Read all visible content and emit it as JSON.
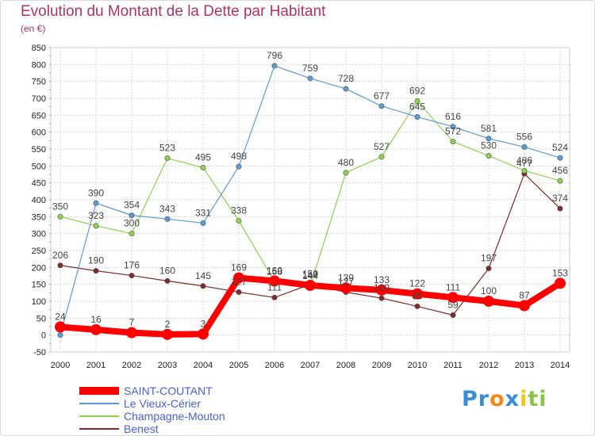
{
  "chart_data": {
    "type": "line",
    "title": "Evolution du Montant de la Dette par Habitant",
    "subtitle": "(en €)",
    "x": [
      "2000",
      "2001",
      "2002",
      "2003",
      "2004",
      "2005",
      "2006",
      "2007",
      "2008",
      "2009",
      "2010",
      "2011",
      "2012",
      "2013",
      "2014"
    ],
    "ylim": [
      -50,
      850
    ],
    "yticks": [
      -50,
      0,
      50,
      100,
      150,
      200,
      250,
      300,
      350,
      400,
      450,
      500,
      550,
      600,
      650,
      700,
      750,
      800,
      850
    ],
    "grid": true,
    "legend_position": "bottom-left",
    "series": [
      {
        "name": "SAINT-COUTANT",
        "color": "#ff0000",
        "values": [
          24,
          16,
          7,
          2,
          3,
          169,
          160,
          147,
          139,
          133,
          122,
          111,
          100,
          87,
          153
        ]
      },
      {
        "name": "Le Vieux-Cérier",
        "color": "#5b9bd5",
        "values": [
          0,
          390,
          354,
          343,
          331,
          498,
          796,
          759,
          728,
          677,
          645,
          616,
          581,
          556,
          524
        ]
      },
      {
        "name": "Champagne-Mouton",
        "color": "#8fd14f",
        "values": [
          350,
          323,
          300,
          523,
          495,
          338,
          158,
          144,
          480,
          527,
          692,
          572,
          530,
          486,
          456
        ]
      },
      {
        "name": "Benest",
        "color": "#7b2c2c",
        "values": [
          206,
          190,
          176,
          160,
          145,
          127,
          111,
          150,
          127,
          109,
          85,
          59,
          197,
          477,
          374
        ]
      }
    ],
    "value_labels": [
      {
        "series": 0,
        "labels": [
          "24",
          "16",
          "7",
          "2",
          "3",
          "169",
          "160",
          "147",
          "139",
          "133",
          "122",
          "111",
          "100",
          "87",
          "153"
        ]
      },
      {
        "series": 1,
        "labels": [
          "",
          "390",
          "354",
          "343",
          "331",
          "498",
          "796",
          "759",
          "728",
          "677",
          "645",
          "616",
          "581",
          "556",
          "524"
        ]
      },
      {
        "series": 2,
        "labels": [
          "350",
          "323",
          "300",
          "523",
          "495",
          "338",
          "158",
          "144",
          "480",
          "527",
          "692",
          "572",
          "530",
          "486",
          "456"
        ]
      },
      {
        "series": 3,
        "labels": [
          "206",
          "190",
          "176",
          "160",
          "145",
          "127",
          "111",
          "150",
          "127",
          "109",
          "85",
          "59",
          "197",
          "477",
          "374"
        ]
      }
    ]
  },
  "logo": {
    "text_parts": [
      "Pr",
      "o",
      "x",
      "i",
      "ti"
    ],
    "colors": [
      "#3b8ed6",
      "#f08a1c",
      "#3b8ed6",
      "#f5c518",
      "#8bc34a"
    ]
  }
}
